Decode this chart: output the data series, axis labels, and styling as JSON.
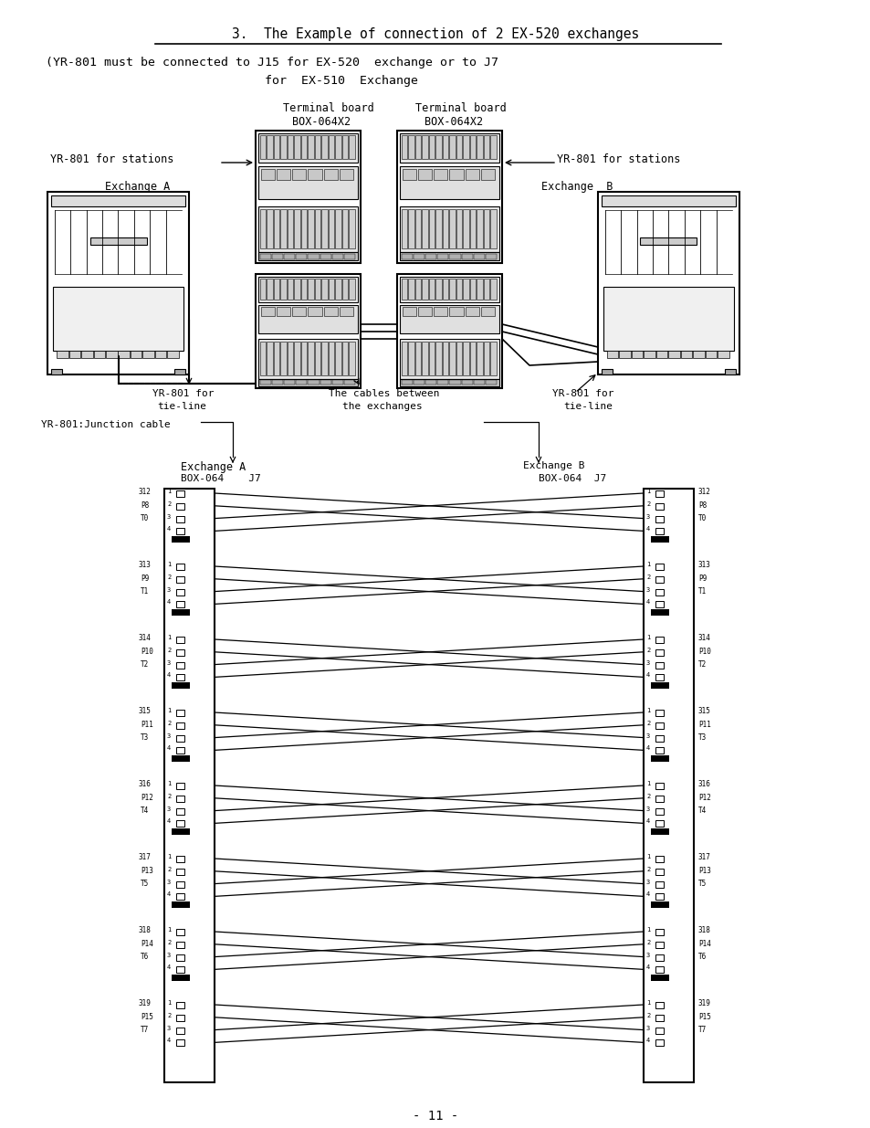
{
  "bg_color": "#ffffff",
  "font_color": "#000000",
  "line_color": "#000000",
  "title": "3.  The Example of connection of 2 EX-520 exchanges",
  "subtitle1": "(YR-801 must be connected to J15 for EX-520  exchange or to J7",
  "subtitle2": "                              for  EX-510  Exchange",
  "footer": "- 11 -",
  "groups": [
    [
      "312",
      "P8",
      "T0"
    ],
    [
      "313",
      "P9",
      "T1"
    ],
    [
      "314",
      "P10",
      "T2"
    ],
    [
      "315",
      "P11",
      "T3"
    ],
    [
      "316",
      "P12",
      "T4"
    ],
    [
      "317",
      "P13",
      "T5"
    ],
    [
      "318",
      "P14",
      "T6"
    ],
    [
      "319",
      "P15",
      "T7"
    ]
  ]
}
